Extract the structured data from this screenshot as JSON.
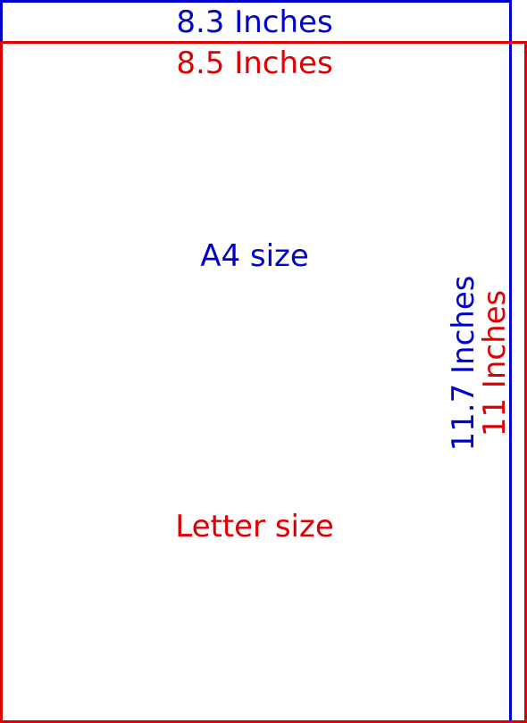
{
  "diagram": {
    "a4": {
      "width_label": "8.3 Inches",
      "height_label": "11.7 Inches",
      "name": "A4 size",
      "color": "#0000cc"
    },
    "letter": {
      "width_label": "8.5 Inches",
      "height_label": "11 Inches",
      "name": "Letter size",
      "color": "#dd0000"
    }
  }
}
